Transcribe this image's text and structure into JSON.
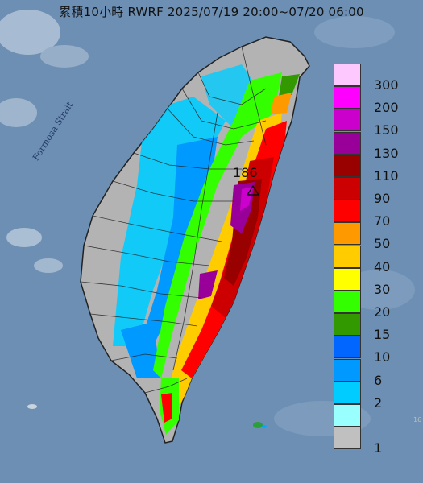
{
  "title": "累積10小時 RWRF 2025/07/19 20:00~07/20 06:00",
  "strait_label": "Formosa Strait",
  "peak": {
    "value": "186"
  },
  "edge_mark": "16",
  "colors": {
    "sea": "#6d8fb3",
    "land_base": "#b3b3b3",
    "border": "#222222"
  },
  "legend": {
    "items": [
      {
        "label": "300",
        "color": "#fdc8fd"
      },
      {
        "label": "200",
        "color": "#fe00fe"
      },
      {
        "label": "150",
        "color": "#cc00cc"
      },
      {
        "label": "130",
        "color": "#990099"
      },
      {
        "label": "110",
        "color": "#990000"
      },
      {
        "label": "90",
        "color": "#cc0000"
      },
      {
        "label": "70",
        "color": "#ff0000"
      },
      {
        "label": "50",
        "color": "#ff9900"
      },
      {
        "label": "40",
        "color": "#ffcc00"
      },
      {
        "label": "30",
        "color": "#ffff00"
      },
      {
        "label": "20",
        "color": "#33ff00"
      },
      {
        "label": "15",
        "color": "#339900"
      },
      {
        "label": "10",
        "color": "#0066ff"
      },
      {
        "label": "6",
        "color": "#0099ff"
      },
      {
        "label": "2",
        "color": "#00ccff"
      },
      {
        "label": "",
        "color": "#99ffff"
      },
      {
        "label": "1",
        "color": "#c0c0c0"
      }
    ]
  }
}
